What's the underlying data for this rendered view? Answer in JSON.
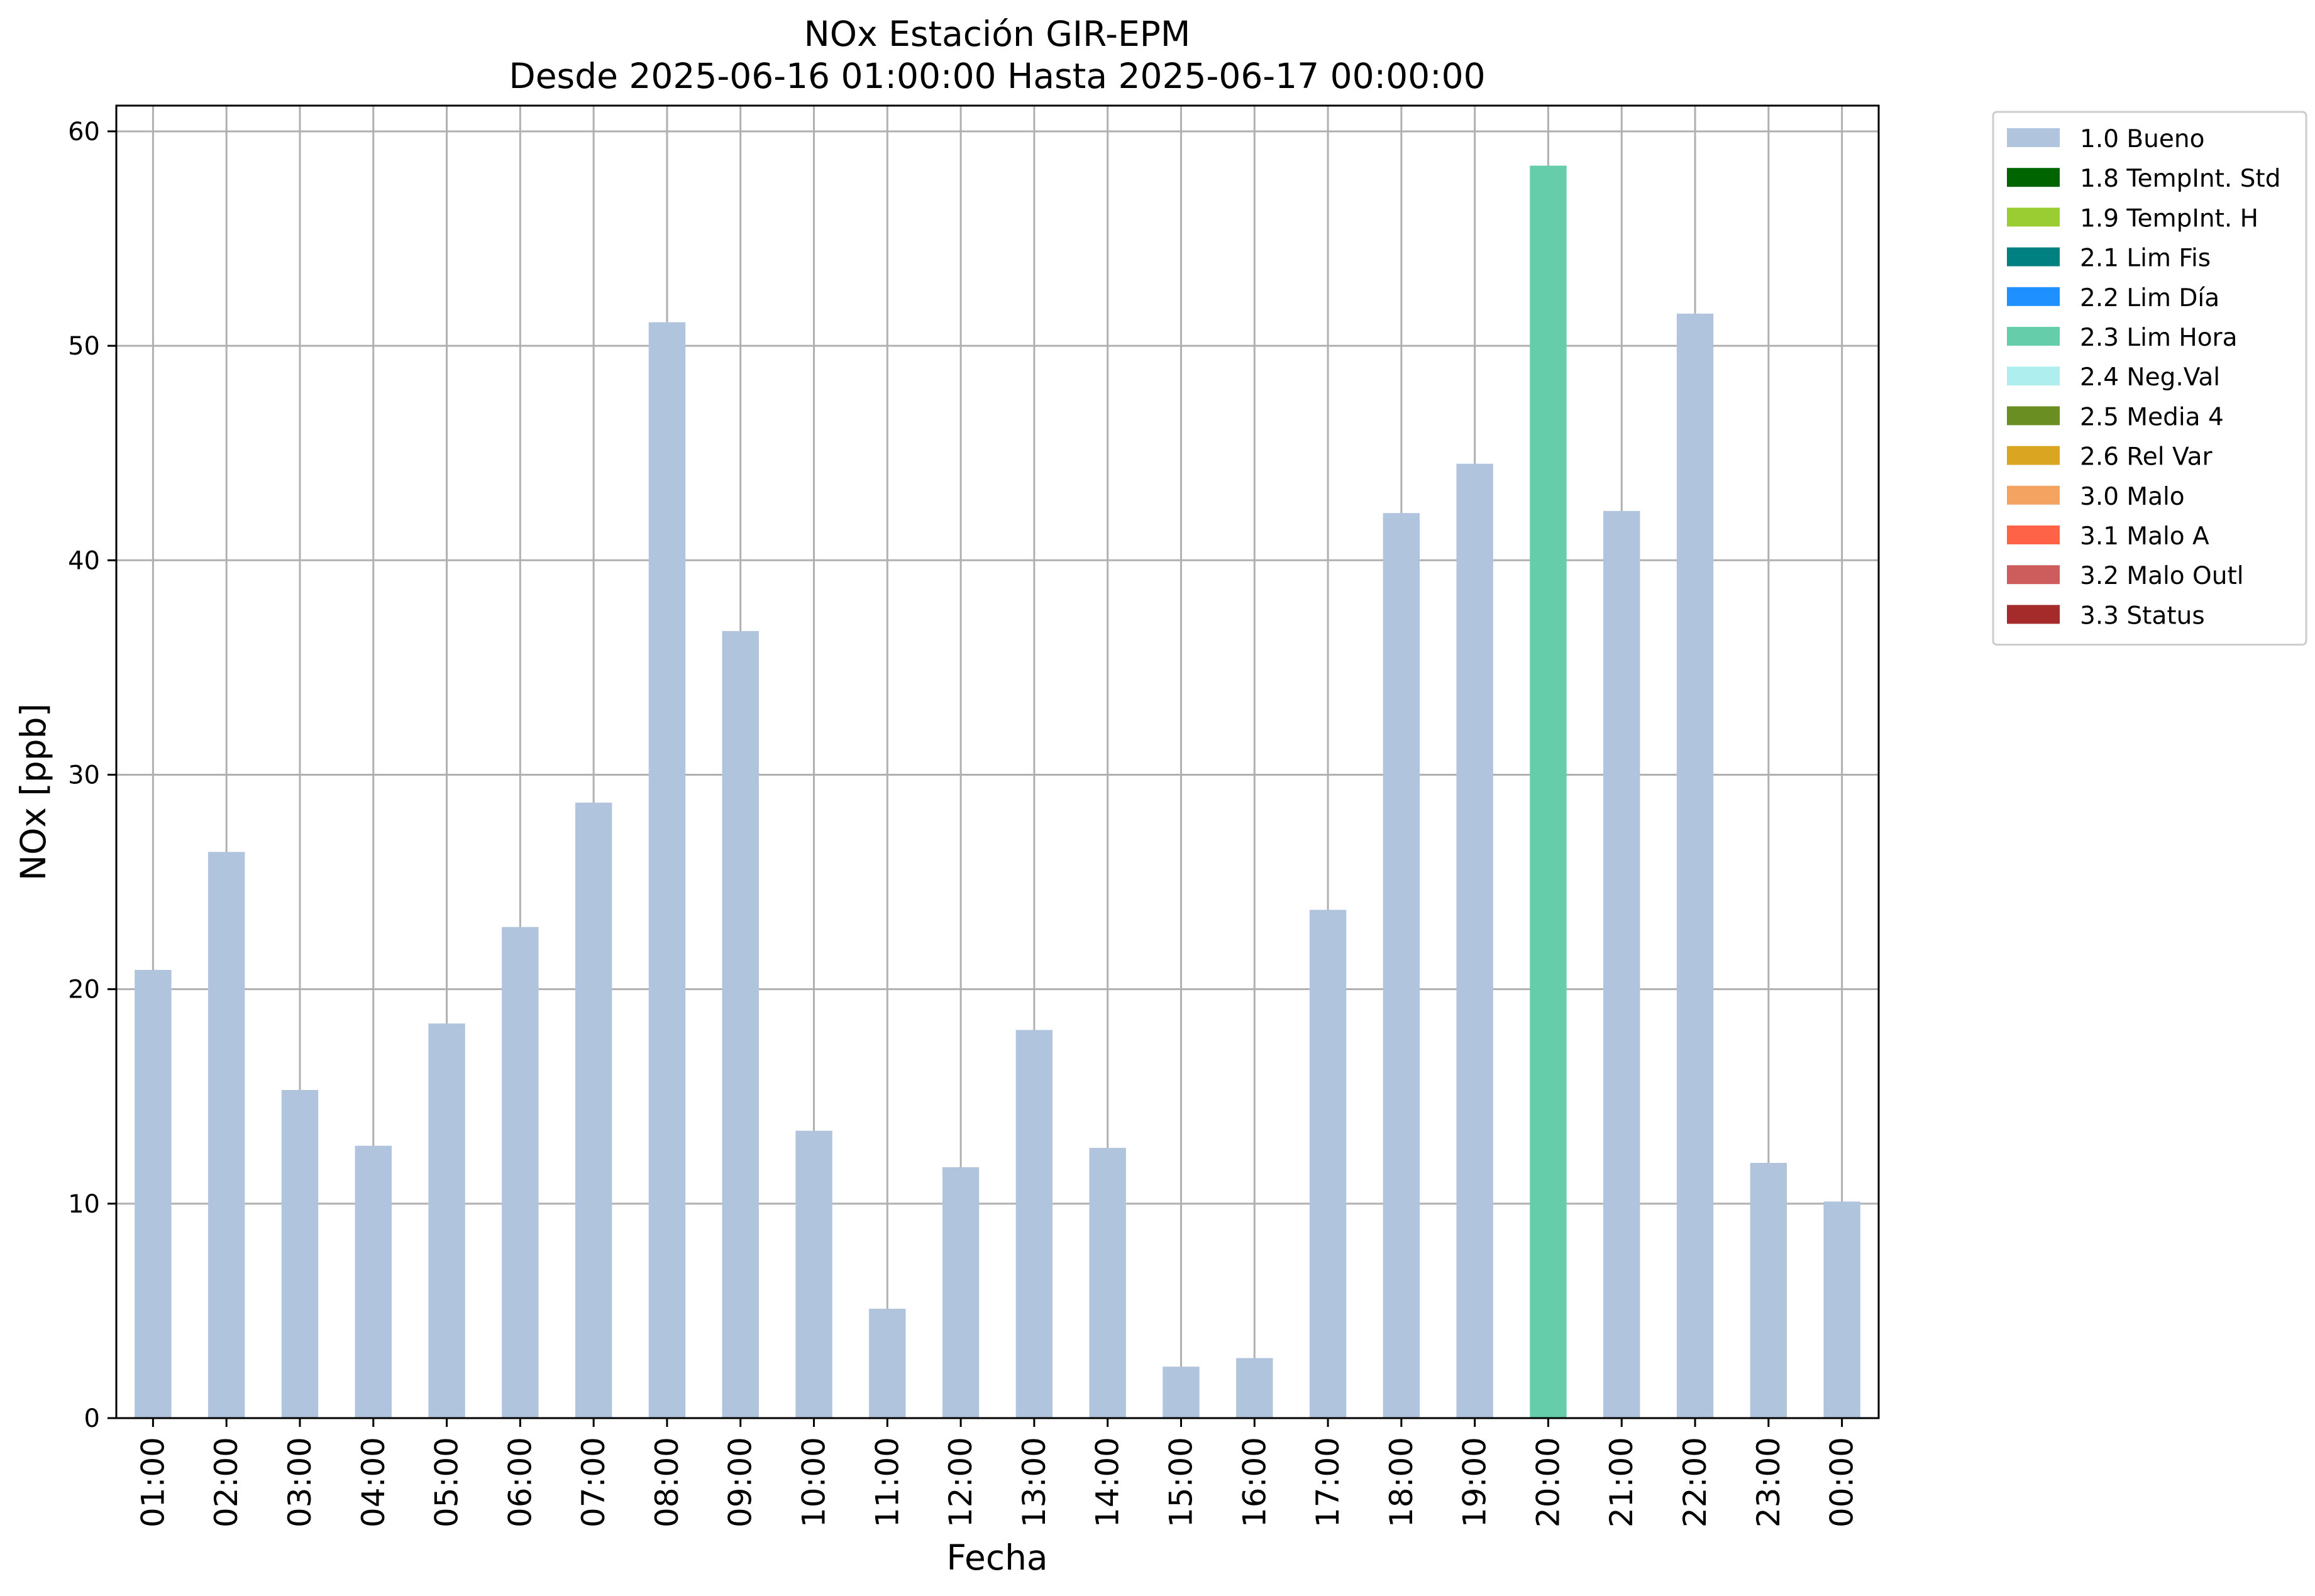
{
  "chart_data": {
    "type": "bar",
    "title": "NOx Estación GIR-EPM",
    "subtitle": "Desde 2025-06-16 01:00:00 Hasta 2025-06-17 00:00:00",
    "xlabel": "Fecha",
    "ylabel": "NOx [ppb]",
    "ylim": [
      0,
      61.2
    ],
    "yticks": [
      0,
      10,
      20,
      30,
      40,
      50,
      60
    ],
    "grid": true,
    "legend_position": "outside-right-top",
    "categories": [
      "01:00",
      "02:00",
      "03:00",
      "04:00",
      "05:00",
      "06:00",
      "07:00",
      "08:00",
      "09:00",
      "10:00",
      "11:00",
      "12:00",
      "13:00",
      "14:00",
      "15:00",
      "16:00",
      "17:00",
      "18:00",
      "19:00",
      "20:00",
      "21:00",
      "22:00",
      "23:00",
      "00:00"
    ],
    "values": [
      20.9,
      26.4,
      15.3,
      12.7,
      18.4,
      22.9,
      28.7,
      51.1,
      36.7,
      13.4,
      5.1,
      11.7,
      18.1,
      12.6,
      2.4,
      2.8,
      23.7,
      42.2,
      44.5,
      58.4,
      42.3,
      51.5,
      11.9,
      10.1
    ],
    "flags": [
      "1.0 Bueno",
      "1.0 Bueno",
      "1.0 Bueno",
      "1.0 Bueno",
      "1.0 Bueno",
      "1.0 Bueno",
      "1.0 Bueno",
      "1.0 Bueno",
      "1.0 Bueno",
      "1.0 Bueno",
      "1.0 Bueno",
      "1.0 Bueno",
      "1.0 Bueno",
      "1.0 Bueno",
      "1.0 Bueno",
      "1.0 Bueno",
      "1.0 Bueno",
      "1.0 Bueno",
      "1.0 Bueno",
      "2.3 Lim Hora",
      "1.0 Bueno",
      "1.0 Bueno",
      "1.0 Bueno",
      "1.0 Bueno"
    ],
    "legend": [
      {
        "label": "1.0 Bueno",
        "color": "#b0c4de"
      },
      {
        "label": "1.8 TempInt. Std",
        "color": "#006400"
      },
      {
        "label": "1.9 TempInt. H",
        "color": "#9acd32"
      },
      {
        "label": "2.1 Lim Fis",
        "color": "#008080"
      },
      {
        "label": "2.2 Lim Día",
        "color": "#1e90ff"
      },
      {
        "label": "2.3 Lim Hora",
        "color": "#66cdaa"
      },
      {
        "label": "2.4 Neg.Val",
        "color": "#afeeee"
      },
      {
        "label": "2.5 Media 4",
        "color": "#6b8e23"
      },
      {
        "label": "2.6 Rel Var",
        "color": "#daa520"
      },
      {
        "label": "3.0 Malo",
        "color": "#f4a460"
      },
      {
        "label": "3.1 Malo A",
        "color": "#ff6347"
      },
      {
        "label": "3.2 Malo Outl",
        "color": "#cd5c5c"
      },
      {
        "label": "3.3 Status",
        "color": "#a52a2a"
      }
    ]
  }
}
